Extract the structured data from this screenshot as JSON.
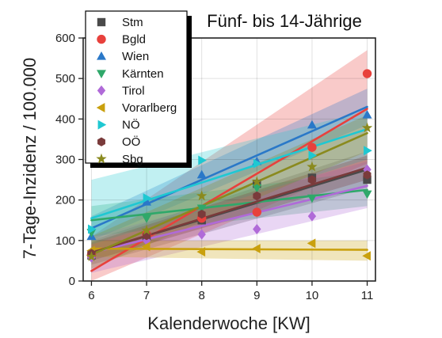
{
  "chart_data": {
    "type": "scatter",
    "title": "Fünf- bis 14-Jährige",
    "xlabel": "Kalenderwoche [KW]",
    "ylabel": "7-Tage-Inzidenz / 100.000",
    "xlim": [
      5.85,
      11.15
    ],
    "ylim": [
      0,
      600
    ],
    "xticks": [
      6,
      7,
      8,
      9,
      10,
      11
    ],
    "yticks": [
      0,
      100,
      200,
      300,
      400,
      500,
      600
    ],
    "grid": true,
    "legend_position": "top-left",
    "series": [
      {
        "name": "Stm",
        "color": "#4a4a4a",
        "marker": "square",
        "x": [
          6,
          7,
          8,
          9,
          10,
          11
        ],
        "y": [
          63,
          110,
          150,
          240,
          255,
          250
        ],
        "fit": [
          [
            6,
            70
          ],
          [
            11,
            275
          ]
        ],
        "band": [
          [
            6,
            40,
            100
          ],
          [
            11,
            230,
            320
          ]
        ]
      },
      {
        "name": "Bgld",
        "color": "#e8413c",
        "marker": "circle",
        "x": [
          6,
          7,
          8,
          9,
          10,
          11
        ],
        "y": [
          65,
          115,
          155,
          170,
          330,
          512
        ],
        "fit": [
          [
            6,
            25
          ],
          [
            11,
            425
          ]
        ],
        "band": [
          [
            6,
            -60,
            110
          ],
          [
            11,
            290,
            570
          ]
        ]
      },
      {
        "name": "Wien",
        "color": "#2a78c8",
        "marker": "triangle-up",
        "x": [
          6,
          7,
          8,
          9,
          10,
          11
        ],
        "y": [
          110,
          195,
          262,
          295,
          385,
          410
        ],
        "fit": [
          [
            6,
            130
          ],
          [
            11,
            430
          ]
        ],
        "band": [
          [
            6,
            100,
            160
          ],
          [
            11,
            385,
            475
          ]
        ]
      },
      {
        "name": "Kärnten",
        "color": "#2fa86a",
        "marker": "triangle-down",
        "x": [
          6,
          7,
          8,
          9,
          10,
          11
        ],
        "y": [
          120,
          155,
          180,
          230,
          205,
          215
        ],
        "fit": [
          [
            6,
            150
          ],
          [
            11,
            225
          ]
        ],
        "band": [
          [
            6,
            110,
            185
          ],
          [
            11,
            185,
            270
          ]
        ]
      },
      {
        "name": "Tirol",
        "color": "#b06ad8",
        "marker": "diamond",
        "x": [
          6,
          7,
          8,
          9,
          10,
          11
        ],
        "y": [
          58,
          100,
          115,
          128,
          160,
          275
        ],
        "fit": [
          [
            6,
            70
          ],
          [
            11,
            235
          ]
        ],
        "band": [
          [
            6,
            20,
            110
          ],
          [
            11,
            180,
            295
          ]
        ]
      },
      {
        "name": "Vorarlberg",
        "color": "#c9a00e",
        "marker": "triangle-left",
        "x": [
          6,
          7,
          8,
          9,
          10,
          11
        ],
        "y": [
          75,
          85,
          72,
          80,
          93,
          62
        ],
        "fit": [
          [
            6,
            80
          ],
          [
            11,
            77
          ]
        ],
        "band": [
          [
            6,
            60,
            100
          ],
          [
            11,
            50,
            100
          ]
        ]
      },
      {
        "name": "NÖ",
        "color": "#1fc8d2",
        "marker": "triangle-right",
        "x": [
          6,
          7,
          8,
          9,
          10,
          11
        ],
        "y": [
          128,
          205,
          298,
          290,
          310,
          322
        ],
        "fit": [
          [
            6,
            155
          ],
          [
            11,
            375
          ]
        ],
        "band": [
          [
            6,
            90,
            250
          ],
          [
            11,
            300,
            420
          ]
        ]
      },
      {
        "name": "OÖ",
        "color": "#7a3b3b",
        "marker": "hexagon",
        "x": [
          6,
          7,
          8,
          9,
          10,
          11
        ],
        "y": [
          68,
          112,
          165,
          210,
          250,
          262
        ],
        "fit": [
          [
            6,
            70
          ],
          [
            11,
            280
          ]
        ],
        "band": [
          [
            6,
            50,
            95
          ],
          [
            11,
            250,
            310
          ]
        ]
      },
      {
        "name": "Sbg",
        "color": "#8a8a1e",
        "marker": "star",
        "x": [
          6,
          7,
          8,
          9,
          10,
          11
        ],
        "y": [
          60,
          125,
          210,
          245,
          282,
          378
        ],
        "fit": [
          [
            6,
            65
          ],
          [
            11,
            365
          ]
        ],
        "band": [
          [
            6,
            30,
            110
          ],
          [
            11,
            320,
            410
          ]
        ]
      }
    ]
  }
}
